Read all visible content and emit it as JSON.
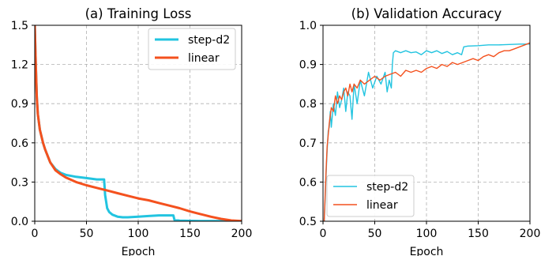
{
  "chart_data": [
    {
      "type": "line",
      "title": "(a) Training Loss",
      "xlabel": "Epoch",
      "ylabel": "",
      "xlim": [
        0,
        200
      ],
      "ylim": [
        0,
        1.5
      ],
      "xticks": [
        0,
        50,
        100,
        150,
        200
      ],
      "yticks": [
        0.0,
        0.3,
        0.6,
        0.9,
        1.2,
        1.5
      ],
      "ytick_labels": [
        "0.0",
        "0.3",
        "0.6",
        "0.9",
        "1.2",
        "1.5"
      ],
      "grid": true,
      "legend_position": "top-right",
      "series": [
        {
          "name": "step-d2",
          "color": "#22c4e0",
          "x": [
            0,
            1,
            2,
            3,
            5,
            8,
            10,
            15,
            20,
            25,
            30,
            40,
            50,
            60,
            67,
            68,
            70,
            72,
            75,
            80,
            85,
            90,
            100,
            110,
            120,
            130,
            134,
            135,
            140,
            150,
            160,
            170,
            180,
            190,
            200
          ],
          "y": [
            1.5,
            1.2,
            0.95,
            0.82,
            0.7,
            0.6,
            0.55,
            0.45,
            0.4,
            0.37,
            0.355,
            0.34,
            0.33,
            0.32,
            0.32,
            0.2,
            0.1,
            0.07,
            0.05,
            0.035,
            0.03,
            0.03,
            0.035,
            0.04,
            0.045,
            0.045,
            0.045,
            0.01,
            0.005,
            0.003,
            0.002,
            0.002,
            0.001,
            0.001,
            0.001
          ]
        },
        {
          "name": "linear",
          "color": "#f4511e",
          "x": [
            0,
            1,
            2,
            3,
            5,
            8,
            10,
            15,
            20,
            25,
            30,
            40,
            50,
            60,
            70,
            80,
            90,
            100,
            110,
            120,
            130,
            140,
            150,
            160,
            170,
            180,
            190,
            200
          ],
          "y": [
            1.5,
            1.2,
            0.95,
            0.82,
            0.7,
            0.6,
            0.55,
            0.45,
            0.39,
            0.36,
            0.335,
            0.3,
            0.275,
            0.255,
            0.235,
            0.215,
            0.195,
            0.175,
            0.16,
            0.14,
            0.12,
            0.1,
            0.075,
            0.055,
            0.035,
            0.018,
            0.006,
            0.002
          ]
        }
      ]
    },
    {
      "type": "line",
      "title": "(b) Validation Accuracy",
      "xlabel": "Epoch",
      "ylabel": "",
      "xlim": [
        0,
        200
      ],
      "ylim": [
        0.5,
        1.0
      ],
      "xticks": [
        0,
        50,
        100,
        150,
        200
      ],
      "yticks": [
        0.5,
        0.6,
        0.7,
        0.8,
        0.9,
        1.0
      ],
      "ytick_labels": [
        "0.5",
        "0.6",
        "0.7",
        "0.8",
        "0.9",
        "1.0"
      ],
      "grid": true,
      "legend_position": "bottom-left",
      "series": [
        {
          "name": "step-d2",
          "color": "#22c4e0",
          "x": [
            1,
            2,
            3,
            4,
            5,
            6,
            7,
            8,
            10,
            12,
            14,
            16,
            18,
            20,
            22,
            24,
            26,
            28,
            30,
            33,
            36,
            40,
            44,
            48,
            52,
            56,
            60,
            62,
            64,
            66,
            67,
            68,
            70,
            75,
            80,
            85,
            90,
            95,
            100,
            105,
            110,
            115,
            120,
            125,
            130,
            134,
            136,
            140,
            150,
            160,
            170,
            180,
            190,
            200
          ],
          "y": [
            0.49,
            0.55,
            0.62,
            0.68,
            0.73,
            0.74,
            0.78,
            0.74,
            0.8,
            0.77,
            0.83,
            0.79,
            0.81,
            0.84,
            0.78,
            0.83,
            0.82,
            0.76,
            0.85,
            0.8,
            0.86,
            0.82,
            0.88,
            0.84,
            0.87,
            0.85,
            0.88,
            0.83,
            0.86,
            0.84,
            0.9,
            0.93,
            0.935,
            0.93,
            0.935,
            0.93,
            0.932,
            0.925,
            0.935,
            0.93,
            0.935,
            0.928,
            0.933,
            0.925,
            0.93,
            0.925,
            0.945,
            0.947,
            0.948,
            0.95,
            0.95,
            0.951,
            0.952,
            0.952
          ]
        },
        {
          "name": "linear",
          "color": "#f4511e",
          "x": [
            1,
            2,
            3,
            4,
            5,
            6,
            7,
            8,
            10,
            12,
            14,
            16,
            18,
            20,
            22,
            24,
            26,
            28,
            30,
            33,
            36,
            40,
            45,
            50,
            55,
            60,
            65,
            70,
            75,
            80,
            85,
            90,
            95,
            100,
            105,
            110,
            115,
            120,
            125,
            130,
            135,
            140,
            145,
            150,
            155,
            160,
            165,
            170,
            175,
            180,
            185,
            190,
            195,
            200
          ],
          "y": [
            0.49,
            0.56,
            0.63,
            0.69,
            0.72,
            0.75,
            0.77,
            0.79,
            0.78,
            0.82,
            0.8,
            0.82,
            0.81,
            0.83,
            0.84,
            0.82,
            0.85,
            0.83,
            0.85,
            0.84,
            0.86,
            0.85,
            0.86,
            0.87,
            0.86,
            0.87,
            0.875,
            0.88,
            0.87,
            0.885,
            0.88,
            0.885,
            0.88,
            0.89,
            0.895,
            0.89,
            0.9,
            0.895,
            0.905,
            0.9,
            0.905,
            0.91,
            0.915,
            0.91,
            0.92,
            0.925,
            0.92,
            0.93,
            0.935,
            0.935,
            0.94,
            0.945,
            0.95,
            0.955
          ]
        }
      ]
    }
  ]
}
